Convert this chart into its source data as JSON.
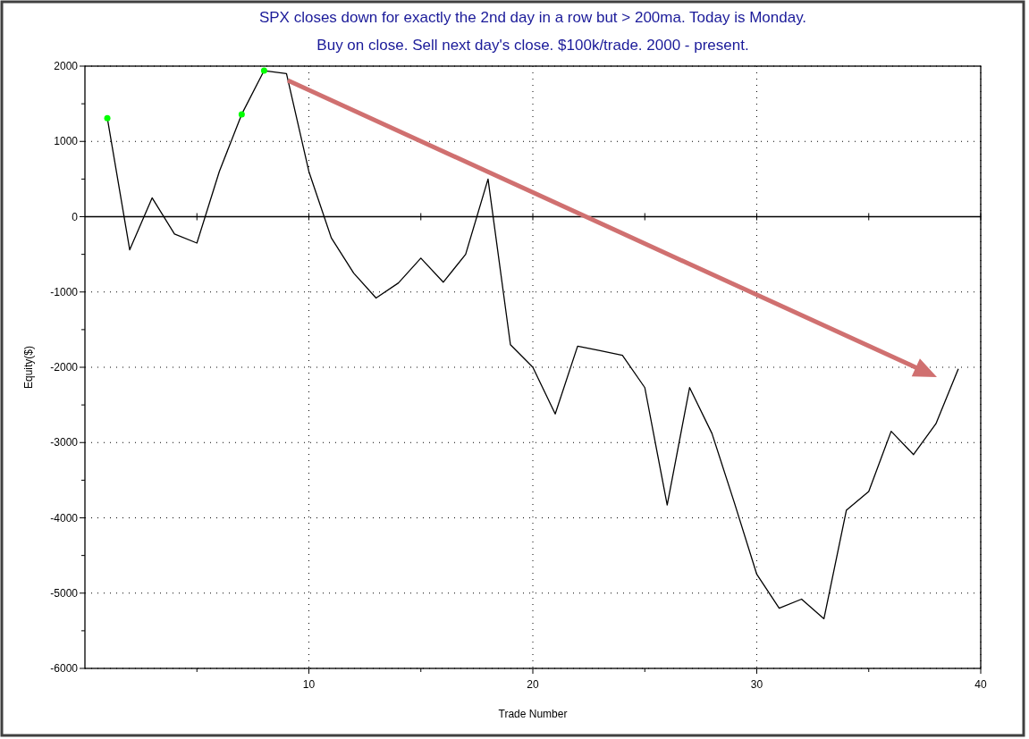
{
  "chart_data": {
    "type": "line",
    "title": "SPX closes down for exactly the 2nd day in a row but > 200ma. Today is Monday.",
    "subtitle": "Buy on close. Sell next day's close. $100k/trade. 2000 - present.",
    "xlabel": "Trade Number",
    "ylabel": "Equity($)",
    "xlim": [
      0,
      40
    ],
    "xticks": [
      10,
      20,
      30,
      40
    ],
    "ylim": [
      -6000,
      2000
    ],
    "yticks": [
      -6000,
      -5000,
      -4000,
      -3000,
      -2000,
      -1000,
      0,
      1000,
      2000
    ],
    "grid": true,
    "marker": "none",
    "ref_lines": [
      {
        "axis": "y",
        "value": 0,
        "color": "#000000",
        "line_style": "solid"
      }
    ],
    "series": [
      {
        "color": "#000000",
        "x": [
          1,
          2,
          3,
          4,
          5,
          6,
          7,
          8,
          9,
          10,
          11,
          12,
          13,
          14,
          15,
          16,
          17,
          18,
          19,
          20,
          21,
          22,
          23,
          24,
          25,
          26,
          27,
          28,
          29,
          30,
          31,
          32,
          33,
          34,
          35,
          36,
          37,
          38,
          39
        ],
        "values": [
          1310,
          -440,
          250,
          -230,
          -350,
          600,
          1360,
          1940,
          1900,
          600,
          -280,
          -750,
          -1080,
          -880,
          -550,
          -870,
          -500,
          500,
          -1700,
          -2000,
          -2620,
          -1720,
          -1780,
          -1840,
          -2270,
          -3830,
          -2270,
          -2880,
          -3800,
          -4750,
          -5200,
          -5080,
          -5340,
          -3900,
          -3650,
          -2850,
          -3160,
          -2750,
          -2020
        ]
      },
      {
        "type": "scatter",
        "color": "#00ff00",
        "marker": "circle",
        "x": [
          1,
          7,
          8
        ],
        "values": [
          1310,
          1360,
          1940
        ]
      }
    ]
  }
}
